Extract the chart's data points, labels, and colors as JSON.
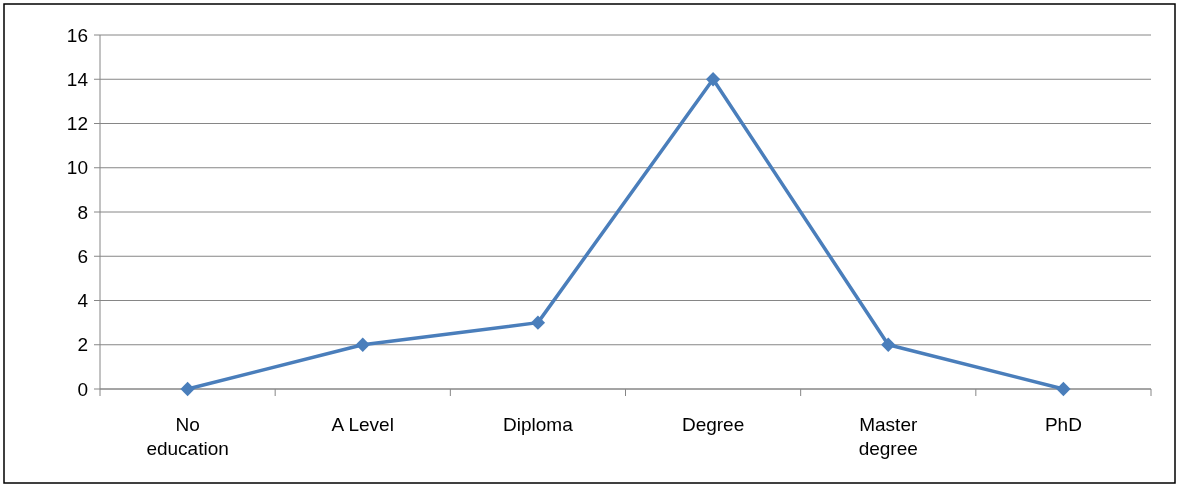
{
  "chart_data": {
    "type": "line",
    "categories": [
      "No education",
      "A Level",
      "Diploma",
      "Degree",
      "Master degree",
      "PhD"
    ],
    "series": [
      {
        "color": "#4a7ebb",
        "values": [
          0,
          2,
          3,
          14,
          2,
          0
        ]
      }
    ],
    "ylim": [
      0,
      16
    ],
    "yticks": [
      0,
      2,
      4,
      6,
      8,
      10,
      12,
      14,
      16
    ],
    "grid": "y",
    "marker": "diamond",
    "line_style": "solid"
  }
}
